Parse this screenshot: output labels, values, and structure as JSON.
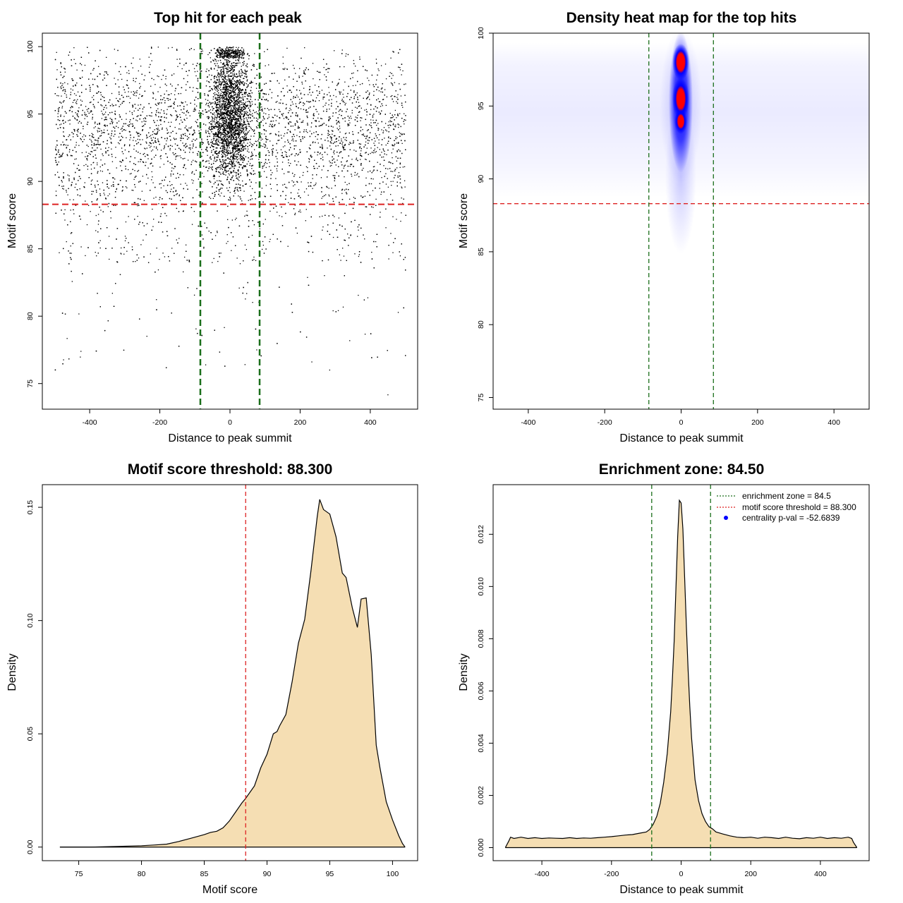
{
  "colors": {
    "threshold_line": "#dd2222",
    "zone_line": "#1a6e1a",
    "density_fill": "#f5deb3",
    "heat_low": "#ffffff",
    "heat_mid": "#0000ff",
    "heat_high": "#ff0000",
    "centrality_dot": "#0000ff"
  },
  "chart_data": [
    {
      "type": "scatter",
      "title": "Top hit for each peak",
      "xlabel": "Distance to peak summit",
      "ylabel": "Motif score",
      "xlim": [
        -535,
        535
      ],
      "ylim": [
        73.1,
        101.0
      ],
      "xticks": [
        -400,
        -200,
        0,
        200,
        400
      ],
      "yticks": [
        75,
        80,
        85,
        90,
        95,
        100
      ],
      "xtick_labels": [
        "-400",
        "-200",
        "0",
        "200",
        "400"
      ],
      "ytick_labels": [
        "75",
        "80",
        "85",
        "90",
        "95",
        "100"
      ],
      "grid": false,
      "reference_lines": {
        "horizontal": 88.3,
        "vertical": [
          -84.5,
          84.5
        ]
      },
      "point_distribution": {
        "x_range": [
          -500,
          500
        ],
        "y_range": [
          74.2,
          100
        ],
        "central_cluster_x": [
          -75,
          75
        ],
        "central_cluster_y": [
          86.5,
          100
        ]
      }
    },
    {
      "type": "heatmap",
      "title": "Density heat map for the top hits",
      "xlabel": "Distance to peak summit",
      "ylabel": "Motif score",
      "xlim": [
        -492,
        492
      ],
      "ylim": [
        74.2,
        100.0
      ],
      "xticks": [
        -400,
        -200,
        0,
        200,
        400
      ],
      "yticks": [
        75,
        80,
        85,
        90,
        95,
        100
      ],
      "xtick_labels": [
        "-400",
        "-200",
        "0",
        "200",
        "400"
      ],
      "ytick_labels": [
        "75",
        "80",
        "85",
        "90",
        "95",
        "100"
      ],
      "grid": false,
      "reference_lines": {
        "horizontal": 88.3,
        "vertical": [
          -84.5,
          84.5
        ]
      },
      "hotspots": [
        {
          "x": 0,
          "y": 98.0,
          "level": "high"
        },
        {
          "x": 0,
          "y": 95.5,
          "level": "high"
        },
        {
          "x": 0,
          "y": 94.0,
          "level": "high"
        }
      ]
    },
    {
      "type": "area",
      "title": "Motif score threshold: 88.300",
      "xlabel": "Motif score",
      "ylabel": "Density",
      "xlim": [
        72.1,
        102.0
      ],
      "ylim": [
        -0.006,
        0.16
      ],
      "xticks": [
        75,
        80,
        85,
        90,
        95,
        100
      ],
      "yticks": [
        0.0,
        0.05,
        0.1,
        0.15
      ],
      "xtick_labels": [
        "75",
        "80",
        "85",
        "90",
        "95",
        "100"
      ],
      "ytick_labels": [
        "0.00",
        "0.05",
        "0.10",
        "0.15"
      ],
      "grid": false,
      "reference_lines": {
        "vertical": [
          88.3
        ]
      },
      "x": [
        73.5,
        76,
        78,
        80,
        81,
        82,
        83,
        84,
        85,
        85.5,
        86,
        86.5,
        87,
        87.5,
        88,
        88.3,
        89,
        89.5,
        90,
        90.5,
        90.8,
        91,
        91.5,
        92,
        92.5,
        93,
        93.5,
        94,
        94.2,
        94.5,
        95,
        95.5,
        96,
        96.3,
        96.8,
        97.2,
        97.5,
        97.9,
        98.3,
        98.7,
        99,
        99.5,
        100,
        100.5,
        100.8,
        101
      ],
      "y": [
        0.0,
        0.0,
        0.0003,
        0.0006,
        0.0009,
        0.0013,
        0.0025,
        0.004,
        0.0055,
        0.0065,
        0.007,
        0.0085,
        0.0115,
        0.0155,
        0.0195,
        0.0215,
        0.027,
        0.035,
        0.041,
        0.05,
        0.051,
        0.0535,
        0.0585,
        0.073,
        0.09,
        0.1005,
        0.122,
        0.146,
        0.1535,
        0.149,
        0.147,
        0.137,
        0.121,
        0.119,
        0.1055,
        0.097,
        0.1095,
        0.11,
        0.085,
        0.045,
        0.035,
        0.02,
        0.012,
        0.005,
        0.0015,
        0.0
      ]
    },
    {
      "type": "area",
      "title": "Enrichment zone: 84.50",
      "xlabel": "Distance to peak summit",
      "ylabel": "Density",
      "xlim": [
        -540,
        540
      ],
      "ylim": [
        -0.0005,
        0.0139
      ],
      "xticks": [
        -400,
        -200,
        0,
        200,
        400
      ],
      "yticks": [
        0.0,
        0.002,
        0.004,
        0.006,
        0.008,
        0.01,
        0.012
      ],
      "xtick_labels": [
        "-400",
        "-200",
        "0",
        "200",
        "400"
      ],
      "ytick_labels": [
        "0.000",
        "0.002",
        "0.004",
        "0.006",
        "0.008",
        "0.010",
        "0.012"
      ],
      "grid": false,
      "reference_lines": {
        "vertical": [
          -84.5,
          84.5
        ]
      },
      "x": [
        -505,
        -495,
        -490,
        -480,
        -460,
        -440,
        -420,
        -400,
        -380,
        -360,
        -340,
        -320,
        -300,
        -280,
        -260,
        -240,
        -220,
        -200,
        -180,
        -160,
        -140,
        -120,
        -100,
        -90,
        -80,
        -70,
        -60,
        -50,
        -40,
        -30,
        -25,
        -20,
        -15,
        -10,
        -5,
        0,
        5,
        10,
        15,
        20,
        25,
        30,
        40,
        50,
        60,
        70,
        80,
        90,
        100,
        120,
        140,
        160,
        180,
        200,
        220,
        240,
        260,
        280,
        300,
        320,
        340,
        360,
        380,
        400,
        420,
        440,
        460,
        480,
        490,
        495,
        505
      ],
      "y": [
        0.0,
        0.00025,
        0.0004,
        0.00035,
        0.0004,
        0.00035,
        0.00038,
        0.00035,
        0.00037,
        0.00036,
        0.00035,
        0.00038,
        0.00035,
        0.00037,
        0.00036,
        0.00038,
        0.0004,
        0.00042,
        0.00045,
        0.00048,
        0.0005,
        0.00055,
        0.0006,
        0.0007,
        0.0009,
        0.0012,
        0.0017,
        0.0025,
        0.0036,
        0.0052,
        0.0065,
        0.0079,
        0.0099,
        0.0119,
        0.0133,
        0.0132,
        0.0122,
        0.0104,
        0.0085,
        0.0068,
        0.0054,
        0.0042,
        0.0026,
        0.0018,
        0.0013,
        0.001,
        0.0008,
        0.00072,
        0.0006,
        0.00052,
        0.00045,
        0.0004,
        0.00038,
        0.0004,
        0.00036,
        0.0004,
        0.00038,
        0.00035,
        0.0004,
        0.00036,
        0.00034,
        0.00038,
        0.00036,
        0.0004,
        0.00035,
        0.00038,
        0.00036,
        0.0004,
        0.00035,
        0.0002,
        0.0
      ]
    }
  ],
  "legend": {
    "position": "top-right",
    "items": [
      {
        "label": "enrichment zone = 84.5",
        "style": "dotted-line",
        "color": "#1a6e1a"
      },
      {
        "label": "motif score threshold = 88.300",
        "style": "dotted-line",
        "color": "#dd2222"
      },
      {
        "label": "centrality p-val = -52.6839",
        "style": "dot",
        "color": "#0000ff"
      }
    ]
  }
}
